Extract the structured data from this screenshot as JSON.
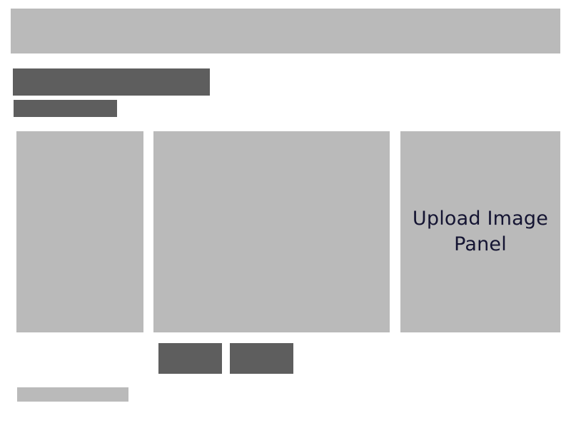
{
  "upload_panel": {
    "label": "Upload Image Panel"
  },
  "colors": {
    "placeholder_light": "#bababa",
    "placeholder_dark": "#5e5e5e",
    "label_text": "#141432",
    "background": "#ffffff"
  }
}
